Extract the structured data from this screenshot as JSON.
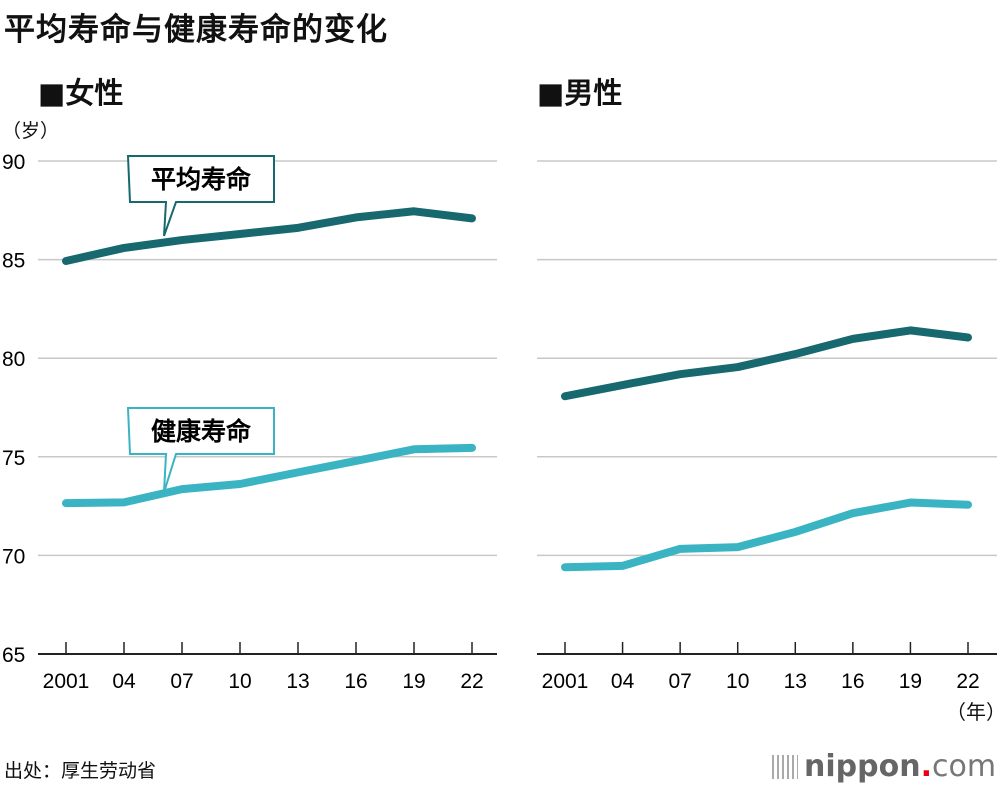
{
  "title": "平均寿命与健康寿命的变化",
  "unit_y": "（岁）",
  "unit_x": "（年）",
  "source": "出处：厚生劳动省",
  "logo": {
    "main": "nippon",
    "dot": ".",
    "suffix": "com"
  },
  "colors": {
    "average": "#17686f",
    "healthy": "#3ab4c2",
    "grid": "#c8c8c8"
  },
  "chart_data": [
    {
      "type": "line",
      "title": "■女性",
      "categories": [
        "2001",
        "04",
        "07",
        "10",
        "13",
        "16",
        "19",
        "22"
      ],
      "ylim": [
        65,
        90
      ],
      "yticks": [
        65,
        70,
        75,
        80,
        85,
        90
      ],
      "grid": true,
      "series": [
        {
          "name": "平均寿命",
          "values": [
            84.93,
            85.59,
            85.99,
            86.3,
            86.61,
            87.14,
            87.45,
            87.09
          ]
        },
        {
          "name": "健康寿命",
          "values": [
            72.65,
            72.69,
            73.36,
            73.62,
            74.21,
            74.79,
            75.38,
            75.45
          ]
        }
      ]
    },
    {
      "type": "line",
      "title": "■男性",
      "categories": [
        "2001",
        "04",
        "07",
        "10",
        "13",
        "16",
        "19",
        "22"
      ],
      "ylim": [
        65,
        90
      ],
      "grid": true,
      "series": [
        {
          "values": [
            78.07,
            78.64,
            79.19,
            79.55,
            80.21,
            80.98,
            81.41,
            81.05
          ]
        },
        {
          "values": [
            69.4,
            69.47,
            70.33,
            70.42,
            71.19,
            72.14,
            72.68,
            72.57
          ]
        }
      ]
    }
  ]
}
